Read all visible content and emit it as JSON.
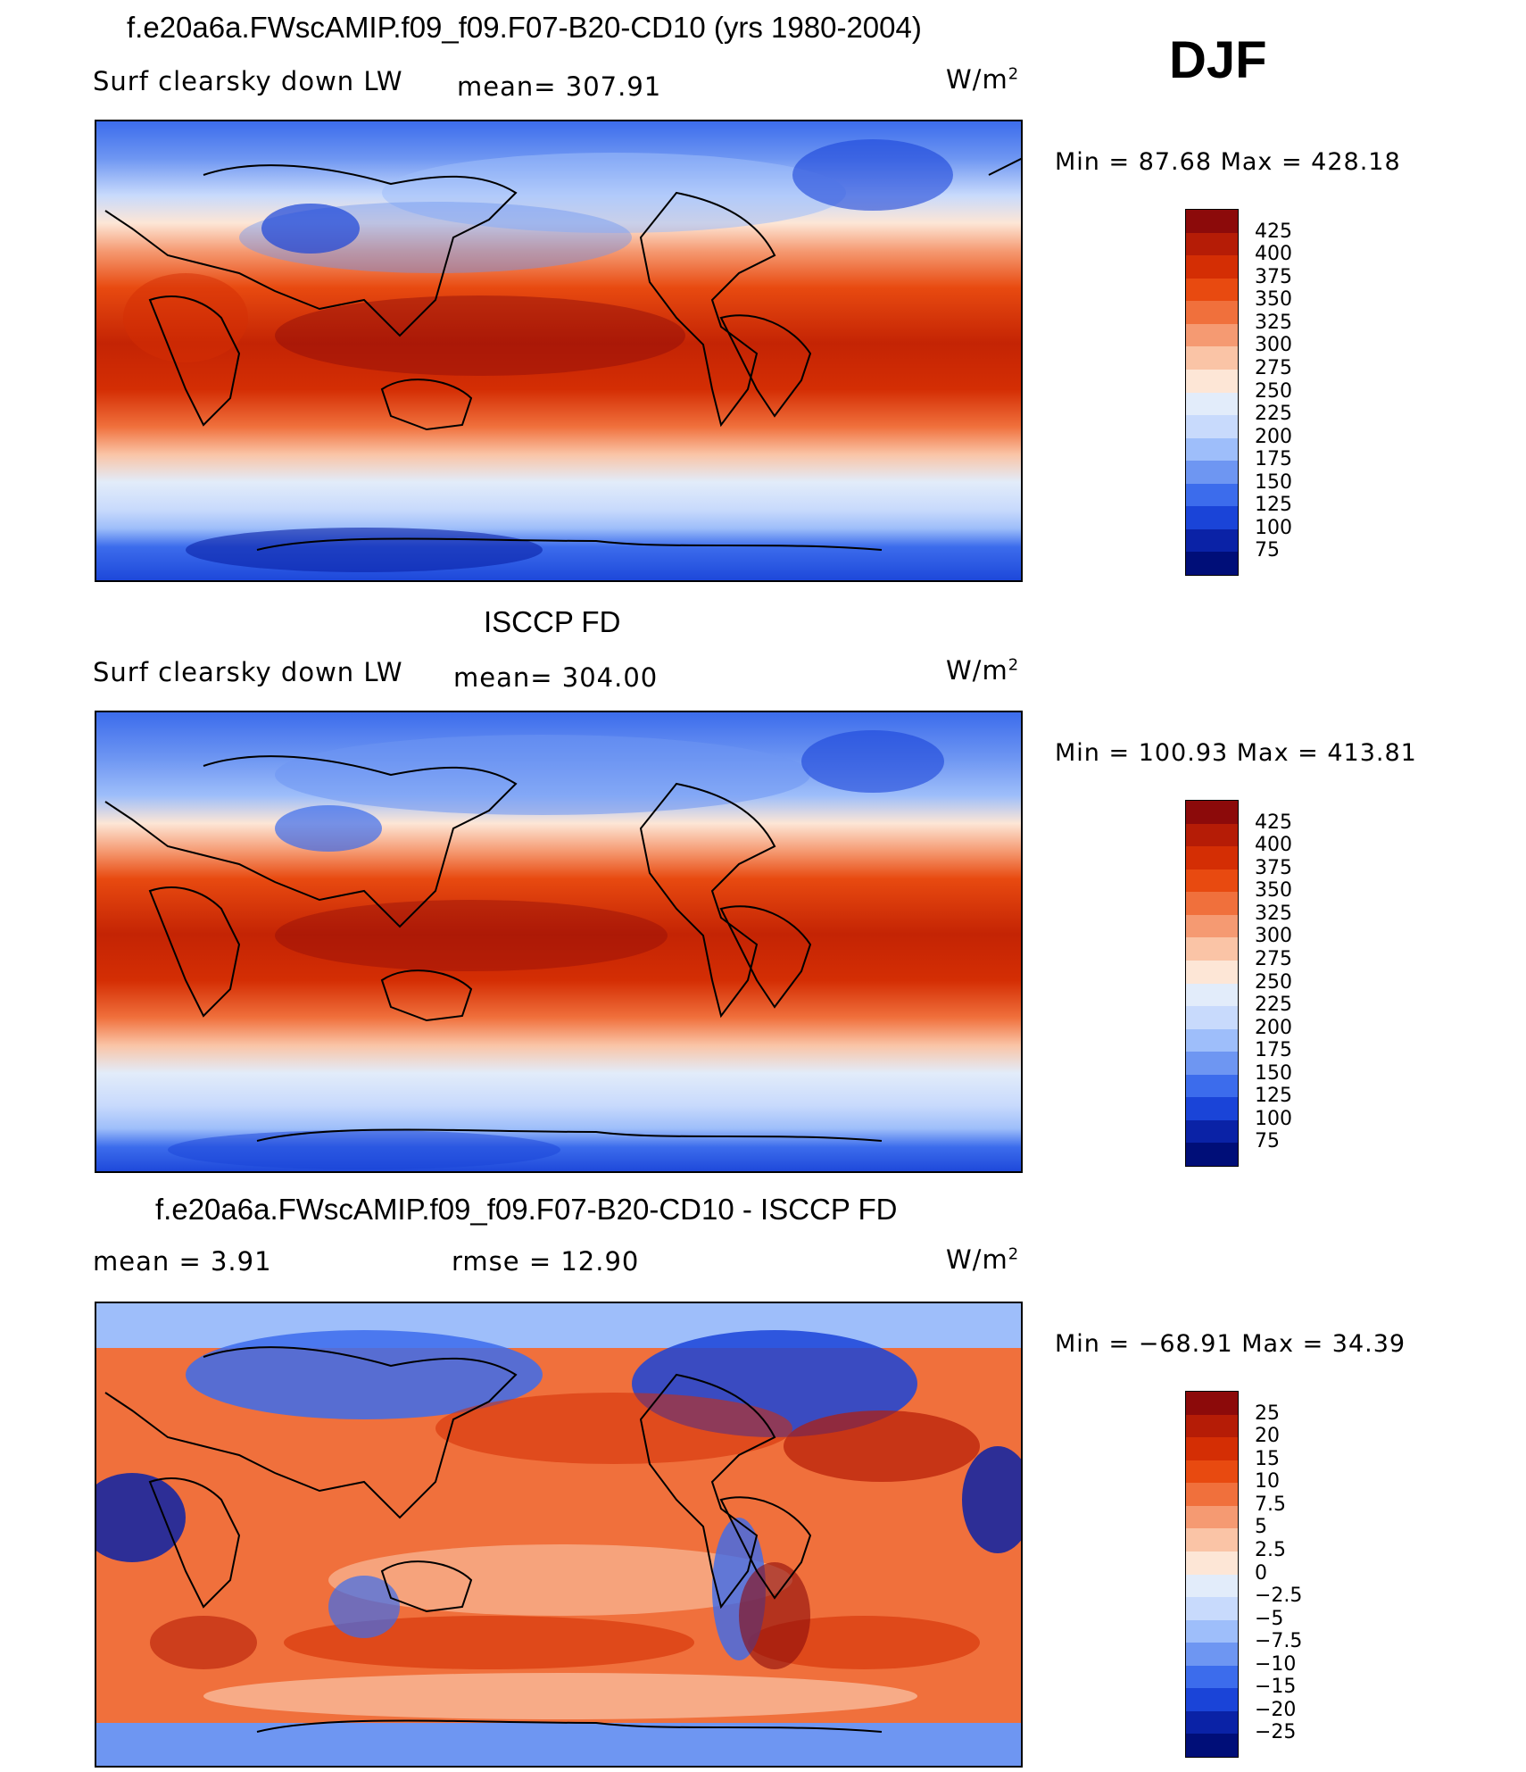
{
  "season": "DJF",
  "units_sup": "2",
  "panels": [
    {
      "title": "f.e20a6a.FWscAMIP.f09_f09.F07-B20-CD10 (yrs 1980-2004)",
      "left_label": "Surf clearsky down LW",
      "center_label": "mean=  307.91",
      "units": "W/m",
      "minmax": "Min =   87.68  Max  =  428.18"
    },
    {
      "title": "ISCCP FD",
      "left_label": "Surf clearsky down LW",
      "center_label": "mean=  304.00",
      "units": "W/m",
      "minmax": "Min  =  100.93  Max  =  413.81"
    },
    {
      "title": "f.e20a6a.FWscAMIP.f09_f09.F07-B20-CD10 - ISCCP FD",
      "left_label": "mean  =      3.91",
      "center_label": "rmse  =     12.90",
      "units": "W/m",
      "minmax": "Min  =  −68.91  Max  =     34.39"
    }
  ],
  "colorbars": [
    {
      "labels": [
        "425",
        "400",
        "375",
        "350",
        "325",
        "300",
        "275",
        "250",
        "225",
        "200",
        "175",
        "150",
        "125",
        "100",
        "75"
      ],
      "colors": [
        "#8c0a0a",
        "#b51c06",
        "#d42e04",
        "#e84a10",
        "#f0703c",
        "#f59a72",
        "#fac4a6",
        "#fde6d6",
        "#e2ecfa",
        "#c8dafc",
        "#9ebefa",
        "#6e96f2",
        "#3c6cec",
        "#1a44d8",
        "#0a22a6",
        "#000e78"
      ]
    },
    {
      "labels": [
        "425",
        "400",
        "375",
        "350",
        "325",
        "300",
        "275",
        "250",
        "225",
        "200",
        "175",
        "150",
        "125",
        "100",
        "75"
      ],
      "colors": [
        "#8c0a0a",
        "#b51c06",
        "#d42e04",
        "#e84a10",
        "#f0703c",
        "#f59a72",
        "#fac4a6",
        "#fde6d6",
        "#e2ecfa",
        "#c8dafc",
        "#9ebefa",
        "#6e96f2",
        "#3c6cec",
        "#1a44d8",
        "#0a22a6",
        "#000e78"
      ]
    },
    {
      "labels": [
        "25",
        "20",
        "15",
        "10",
        "7.5",
        "5",
        "2.5",
        "0",
        "−2.5",
        "−5",
        "−7.5",
        "−10",
        "−15",
        "−20",
        "−25"
      ],
      "colors": [
        "#8c0a0a",
        "#b51c06",
        "#d42e04",
        "#e84a10",
        "#f0703c",
        "#f59a72",
        "#fac4a6",
        "#fde6d6",
        "#e2ecfa",
        "#c8dafc",
        "#9ebefa",
        "#6e96f2",
        "#3c6cec",
        "#1a44d8",
        "#0a22a6",
        "#000e78"
      ]
    }
  ]
}
